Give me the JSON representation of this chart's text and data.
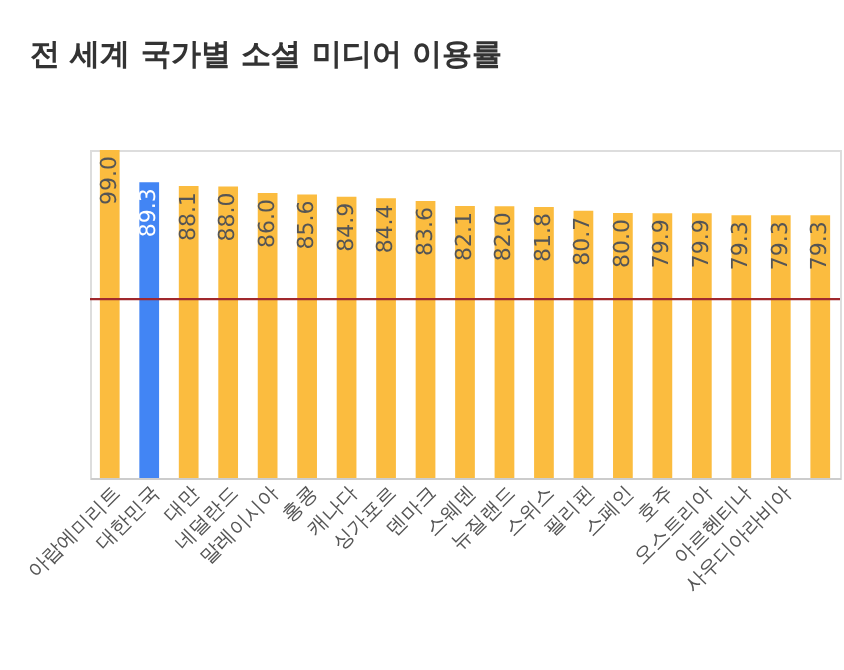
{
  "chart_data": {
    "type": "bar",
    "title": "전 세계 국가별 소셜 미디어 이용률",
    "categories": [
      "아랍에미리트",
      "대한민국",
      "대만",
      "네덜란드",
      "말레이시아",
      "홍콩",
      "캐나다",
      "싱가포르",
      "덴마크",
      "스웨덴",
      "뉴질랜드",
      "스위스",
      "필리핀",
      "스페인",
      "호주",
      "오스트리아",
      "아르헨티나",
      "사우디아라비아",
      null
    ],
    "values": [
      99.0,
      89.3,
      88.1,
      88.0,
      86.0,
      85.6,
      84.9,
      84.4,
      83.6,
      82.1,
      82.0,
      81.8,
      80.7,
      80.0,
      79.9,
      79.9,
      79.3,
      79.3,
      79.3
    ],
    "colors": [
      "#fbbc3f",
      "#4285f4",
      "#fbbc3f",
      "#fbbc3f",
      "#fbbc3f",
      "#fbbc3f",
      "#fbbc3f",
      "#fbbc3f",
      "#fbbc3f",
      "#fbbc3f",
      "#fbbc3f",
      "#fbbc3f",
      "#fbbc3f",
      "#fbbc3f",
      "#fbbc3f",
      "#fbbc3f",
      "#fbbc3f",
      "#fbbc3f",
      "#fbbc3f"
    ],
    "value_labels": [
      "99.0",
      "89.3",
      "88.1",
      "88.0",
      "86.0",
      "85.6",
      "84.9",
      "84.4",
      "83.6",
      "82.1",
      "82.0",
      "81.8",
      "80.7",
      "80.0",
      "79.9",
      "79.9",
      "79.3",
      "79.3",
      "79.3"
    ],
    "ref_lines": [
      {
        "axis": "y",
        "value": 54,
        "color": "#a0282d"
      }
    ],
    "grid": false
  }
}
